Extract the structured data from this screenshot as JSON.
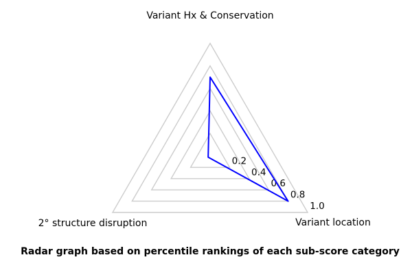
{
  "figure": {
    "caption": "Radar graph based on percentile rankings of each sub-score category"
  },
  "chart_data": {
    "type": "radar",
    "categories": [
      "Variant Hx & Conservation",
      "Variant location",
      "2° structure disruption"
    ],
    "series": [
      {
        "name": "sub-score percentile rankings",
        "values": [
          0.7,
          0.8,
          0.02
        ]
      }
    ],
    "rlim": [
      0,
      1.0
    ],
    "tick_values": [
      0.2,
      0.4,
      0.6,
      0.8,
      1.0
    ],
    "tick_labels": [
      "0.2",
      "0.4",
      "0.6",
      "0.8",
      "1.0"
    ],
    "grid": true,
    "legend": false,
    "frame": "polygon",
    "fill": false,
    "line_color": "#0000ff",
    "grid_color": "#cccccc",
    "text_color": "#000000"
  }
}
